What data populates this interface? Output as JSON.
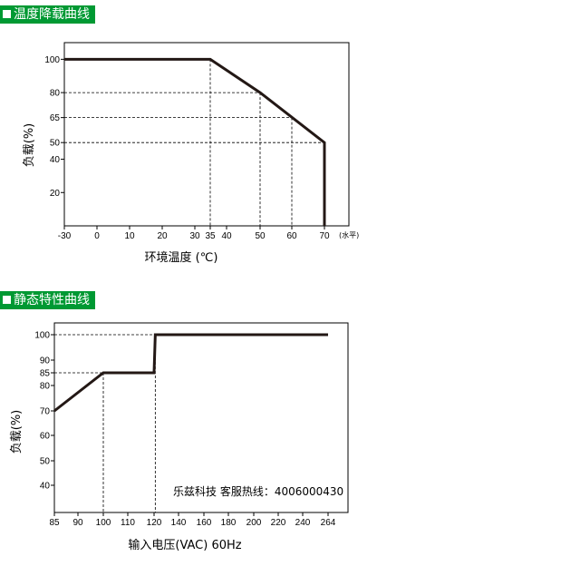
{
  "sections": [
    {
      "title": "温度降载曲线"
    },
    {
      "title": "静态特性曲线"
    }
  ],
  "chart_data": [
    {
      "type": "line",
      "title": "",
      "xlabel": "环境温度 (℃)",
      "ylabel": "负载(%)",
      "x_unit_note": "(水平)",
      "xlim": [
        -30,
        77
      ],
      "ylim": [
        0,
        110
      ],
      "xticks": [
        -30,
        0,
        10,
        20,
        30,
        35,
        40,
        50,
        60,
        70
      ],
      "yticks": [
        20,
        40,
        50,
        65,
        80,
        100
      ],
      "series": [
        {
          "x": [
            -30,
            35,
            50,
            70,
            70
          ],
          "y": [
            100,
            100,
            80,
            50,
            0
          ]
        }
      ],
      "guides": [
        {
          "x": 35,
          "y": 100
        },
        {
          "x": 50,
          "y": 80
        },
        {
          "x": 60,
          "y": 65
        },
        {
          "x": 70,
          "y": 50
        }
      ],
      "grid": false
    },
    {
      "type": "line",
      "title": "",
      "xlabel": "输入电压(VAC) 60Hz",
      "ylabel": "负载(%)",
      "xlim": [
        85,
        270
      ],
      "ylim": [
        30,
        105
      ],
      "xticks": [
        85,
        90,
        100,
        110,
        120,
        140,
        160,
        180,
        200,
        220,
        240,
        264
      ],
      "yticks": [
        40,
        50,
        60,
        70,
        80,
        85,
        90,
        100
      ],
      "series": [
        {
          "x": [
            85,
            100,
            120,
            121,
            264
          ],
          "y": [
            70,
            85,
            85,
            100,
            100
          ]
        }
      ],
      "guides": [
        {
          "x": 100,
          "y": 85
        },
        {
          "x": 121,
          "y": 100
        }
      ],
      "grid": false
    }
  ],
  "watermark": "乐兹科技 客服热线：4006000430"
}
